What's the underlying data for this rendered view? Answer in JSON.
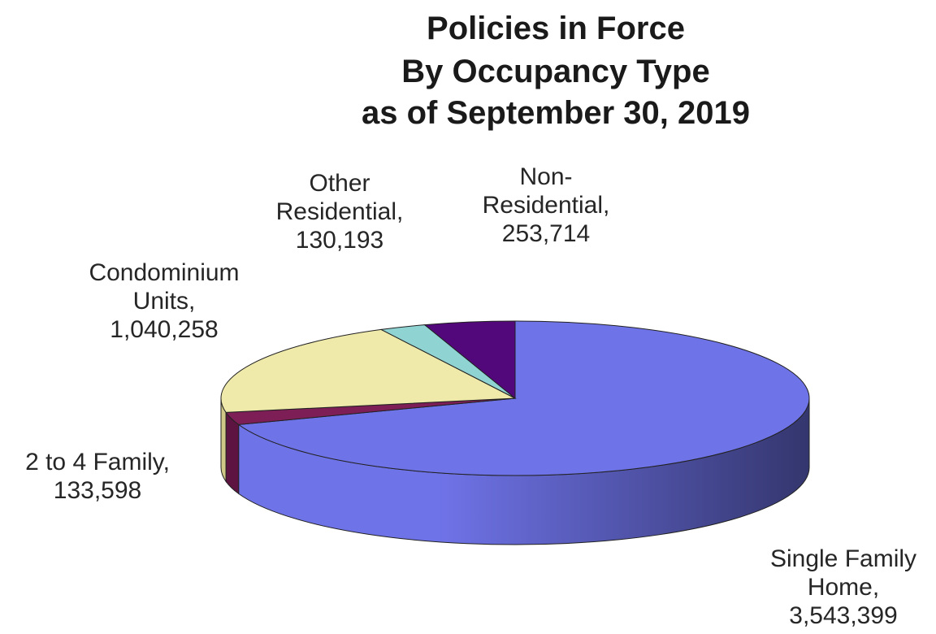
{
  "chart_data": {
    "type": "pie",
    "title": [
      "Policies in Force",
      "By Occupancy Type",
      "as of September 30, 2019"
    ],
    "slices": [
      {
        "category": "Single Family Home",
        "value": 3543399,
        "label": [
          "Single Family",
          "Home,",
          "3,543,399"
        ],
        "color": "#6f73e8",
        "side_color": "#34366e"
      },
      {
        "category": "2 to 4 Family",
        "value": 133598,
        "label": [
          "2 to 4 Family,",
          "133,598"
        ],
        "color": "#7e1e56",
        "side_color": "#5e1440"
      },
      {
        "category": "Condominium Units",
        "value": 1040258,
        "label": [
          "Condominium",
          "Units,",
          "1,040,258"
        ],
        "color": "#efeaaa",
        "side_color": "#cfc886"
      },
      {
        "category": "Other Residential",
        "value": 130193,
        "label": [
          "Other",
          "Residential,",
          "130,193"
        ],
        "color": "#8fd3d3",
        "side_color": "#5aa6a6"
      },
      {
        "category": "Non-Residential",
        "value": 253714,
        "label": [
          "Non-",
          "Residential,",
          "253,714"
        ],
        "color": "#52077a",
        "side_color": "#3a0558"
      }
    ]
  }
}
